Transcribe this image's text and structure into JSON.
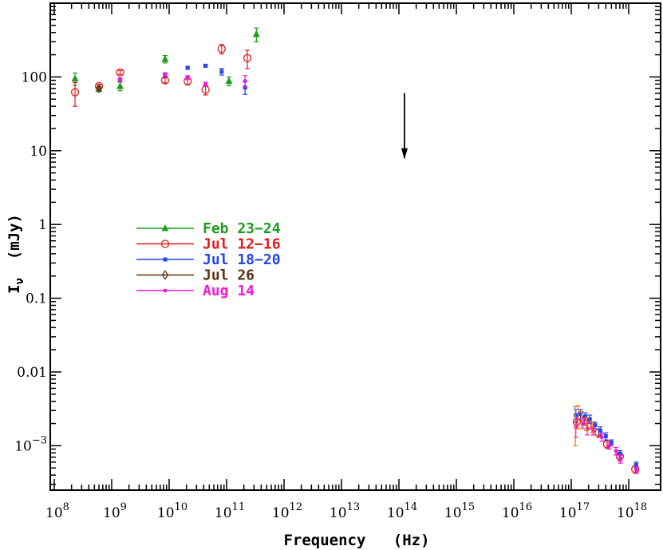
{
  "chart_data": {
    "type": "scatter",
    "x_scale": "log",
    "y_scale": "log",
    "xlim": [
      100000000.0,
      1e+18
    ],
    "ylim": [
      0.00025,
      1000
    ],
    "xlabel": "Frequency   (Hz)",
    "ylabel": "I",
    "ylabel_sub": "ν",
    "ylabel_unit": "(mJy)",
    "x_ticks": [
      {
        "value": 100000000.0,
        "base": "10",
        "exp": "8"
      },
      {
        "value": 1000000000.0,
        "base": "10",
        "exp": "9"
      },
      {
        "value": 10000000000.0,
        "base": "10",
        "exp": "10"
      },
      {
        "value": 100000000000.0,
        "base": "10",
        "exp": "11"
      },
      {
        "value": 1000000000000.0,
        "base": "10",
        "exp": "12"
      },
      {
        "value": 10000000000000.0,
        "base": "10",
        "exp": "13"
      },
      {
        "value": 100000000000000.0,
        "base": "10",
        "exp": "14"
      },
      {
        "value": 1000000000000000.0,
        "base": "10",
        "exp": "15"
      },
      {
        "value": 1e+16,
        "base": "10",
        "exp": "16"
      },
      {
        "value": 1e+17,
        "base": "10",
        "exp": "17"
      },
      {
        "value": 1e+18,
        "base": "10",
        "exp": "18"
      }
    ],
    "y_ticks": [
      {
        "value": 100,
        "label": "100"
      },
      {
        "value": 10,
        "label": "10"
      },
      {
        "value": 1,
        "label": "1"
      },
      {
        "value": 0.1,
        "label": "0.1"
      },
      {
        "value": 0.01,
        "label": "0.01"
      },
      {
        "value": 0.001,
        "base": "10",
        "exp": "−3"
      }
    ],
    "upper_limit": {
      "x": 125000000000000.0,
      "y": 30,
      "y_end": 8
    },
    "series": [
      {
        "name": "Feb 23−24",
        "color": "#1e9c1e",
        "marker": "triangle",
        "points": [
          {
            "x": 230000000.0,
            "y": 95,
            "err": 18
          },
          {
            "x": 600000000.0,
            "y": 68,
            "err": 4
          },
          {
            "x": 1400000000.0,
            "y": 75,
            "err": 10
          },
          {
            "x": 8500000000.0,
            "y": 175,
            "err": 20
          },
          {
            "x": 110000000000.0,
            "y": 88,
            "err": 12
          },
          {
            "x": 330000000000.0,
            "y": 380,
            "err": 80
          }
        ]
      },
      {
        "name": "Jul 12−16",
        "color": "#e21b1b",
        "marker": "circle",
        "points": [
          {
            "x": 230000000.0,
            "y": 62,
            "err": 22
          },
          {
            "x": 600000000.0,
            "y": 75,
            "err": 4
          },
          {
            "x": 1400000000.0,
            "y": 115,
            "err": 7
          },
          {
            "x": 8500000000.0,
            "y": 90,
            "err": 7
          },
          {
            "x": 21000000000.0,
            "y": 88,
            "err": 10
          },
          {
            "x": 43000000000.0,
            "y": 67,
            "err": 10
          },
          {
            "x": 82000000000.0,
            "y": 240,
            "err": 35
          },
          {
            "x": 230000000000.0,
            "y": 180,
            "err": 50
          },
          {
            "x": 1.25e+17,
            "y": 0.0021,
            "err": 0.0004
          },
          {
            "x": 1.7e+17,
            "y": 0.0022,
            "err": 0.0003
          },
          {
            "x": 2.2e+17,
            "y": 0.0019,
            "err": 0.0002
          },
          {
            "x": 3e+17,
            "y": 0.0015,
            "err": 0.0002
          },
          {
            "x": 4.2e+17,
            "y": 0.00105,
            "err": 0.00012
          },
          {
            "x": 7e+17,
            "y": 0.00072,
            "err": 0.0001
          },
          {
            "x": 1.3e+18,
            "y": 0.00048,
            "err": 5e-05
          }
        ]
      },
      {
        "name": "Jul 18−20",
        "color": "#2546e8",
        "marker": "square",
        "points": [
          {
            "x": 1400000000.0,
            "y": 92,
            "err": 5
          },
          {
            "x": 8500000000.0,
            "y": 105,
            "err": 6
          },
          {
            "x": 21000000000.0,
            "y": 133,
            "err": 6
          },
          {
            "x": 43000000000.0,
            "y": 142,
            "err": 6
          },
          {
            "x": 82000000000.0,
            "y": 118,
            "err": 12
          },
          {
            "x": 210000000000.0,
            "y": 72,
            "err": 14
          },
          {
            "x": 1.2e+17,
            "y": 0.0026,
            "err": 0.0005
          },
          {
            "x": 1.45e+17,
            "y": 0.0027,
            "err": 0.0004
          },
          {
            "x": 1.75e+17,
            "y": 0.0025,
            "err": 0.0003
          },
          {
            "x": 2.1e+17,
            "y": 0.0023,
            "err": 0.0003
          },
          {
            "x": 2.6e+17,
            "y": 0.0019,
            "err": 0.0002
          },
          {
            "x": 3.2e+17,
            "y": 0.0016,
            "err": 0.0002
          },
          {
            "x": 4e+17,
            "y": 0.00135,
            "err": 0.00015
          },
          {
            "x": 5e+17,
            "y": 0.0011,
            "err": 0.0001
          },
          {
            "x": 7e+17,
            "y": 0.00078,
            "err": 8e-05
          },
          {
            "x": 1.35e+18,
            "y": 0.00055,
            "err": 5e-05
          }
        ]
      },
      {
        "name": "Jul 26",
        "color": "#5a3312",
        "marker": "diamond",
        "points": [
          {
            "x": 600000000.0,
            "y": 70,
            "err": 4
          }
        ]
      },
      {
        "name": "Aug 14",
        "color": "#ee16d8",
        "marker": "dot",
        "points": [
          {
            "x": 1400000000.0,
            "y": 92,
            "err": 5
          },
          {
            "x": 8500000000.0,
            "y": 108,
            "err": 6
          },
          {
            "x": 21000000000.0,
            "y": 98,
            "err": 6
          },
          {
            "x": 43000000000.0,
            "y": 80,
            "err": 5
          },
          {
            "x": 210000000000.0,
            "y": 88,
            "err": 16
          },
          {
            "x": 1.2e+17,
            "y": 0.0018,
            "err": 0.0005
          },
          {
            "x": 1.6e+17,
            "y": 0.002,
            "err": 0.0003
          },
          {
            "x": 1.9e+17,
            "y": 0.0017,
            "err": 0.0003
          },
          {
            "x": 2.4e+17,
            "y": 0.0016,
            "err": 0.0002
          },
          {
            "x": 3.4e+17,
            "y": 0.0013,
            "err": 0.00015
          },
          {
            "x": 4.6e+17,
            "y": 0.001,
            "err": 0.0001
          },
          {
            "x": 6e+17,
            "y": 0.00085,
            "err": 0.0001
          },
          {
            "x": 7.2e+17,
            "y": 0.00066,
            "err": 8e-05
          },
          {
            "x": 1.35e+18,
            "y": 0.00047,
            "err": 5e-05
          }
        ]
      },
      {
        "color": "#f07818",
        "marker": "errorbar",
        "points": [
          {
            "x": 1.18e+17,
            "y": 0.0022,
            "err": 0.0012
          },
          {
            "x": 1.32e+17,
            "y": 0.0026,
            "err": 0.0009
          },
          {
            "x": 1.5e+17,
            "y": 0.0023,
            "err": 0.0006
          },
          {
            "x": 1.85e+17,
            "y": 0.002,
            "err": 0.0004
          },
          {
            "x": 2.3e+17,
            "y": 0.0018,
            "err": 0.0003
          }
        ]
      }
    ]
  }
}
